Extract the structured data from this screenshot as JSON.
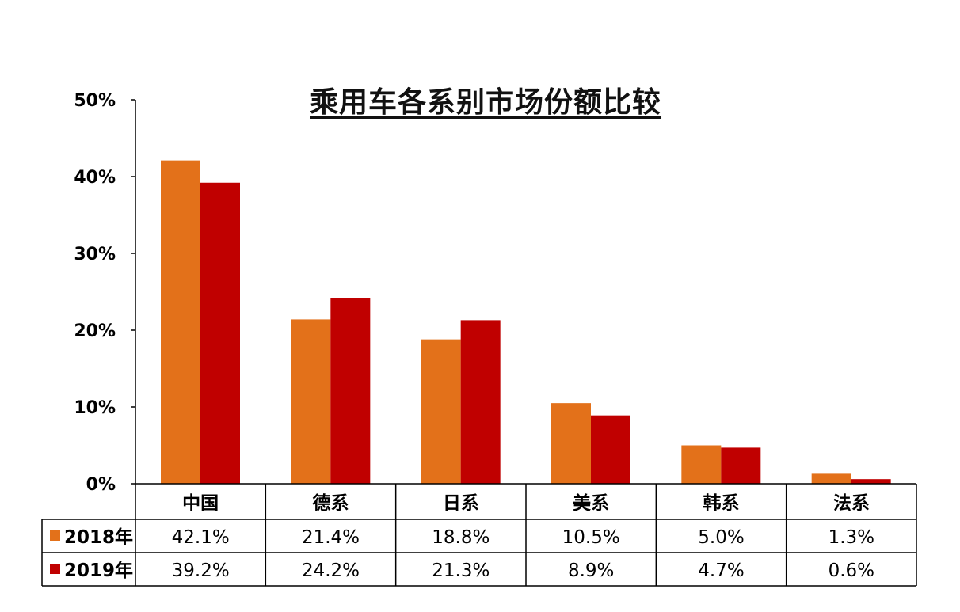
{
  "chart_data": {
    "type": "bar",
    "title": "乘用车各系别市场份额比较",
    "categories": [
      "中国",
      "德系",
      "日系",
      "美系",
      "韩系",
      "法系"
    ],
    "series": [
      {
        "name": "2018年",
        "values": [
          42.1,
          21.4,
          18.8,
          10.5,
          5.0,
          1.3
        ],
        "labels": [
          "42.1%",
          "21.4%",
          "18.8%",
          "10.5%",
          "5.0%",
          "1.3%"
        ]
      },
      {
        "name": "2019年",
        "values": [
          39.2,
          24.2,
          21.3,
          8.9,
          4.7,
          0.6
        ],
        "labels": [
          "39.2%",
          "24.2%",
          "21.3%",
          "8.9%",
          "4.7%",
          "0.6%"
        ]
      }
    ],
    "ylim": [
      0,
      50
    ],
    "yticks": [
      "0%",
      "10%",
      "20%",
      "30%",
      "40%",
      "50%"
    ],
    "xlabel": "",
    "ylabel": "",
    "grid": false,
    "legend": "data-table-left",
    "colors": [
      "#E3711A",
      "#C00000"
    ]
  }
}
